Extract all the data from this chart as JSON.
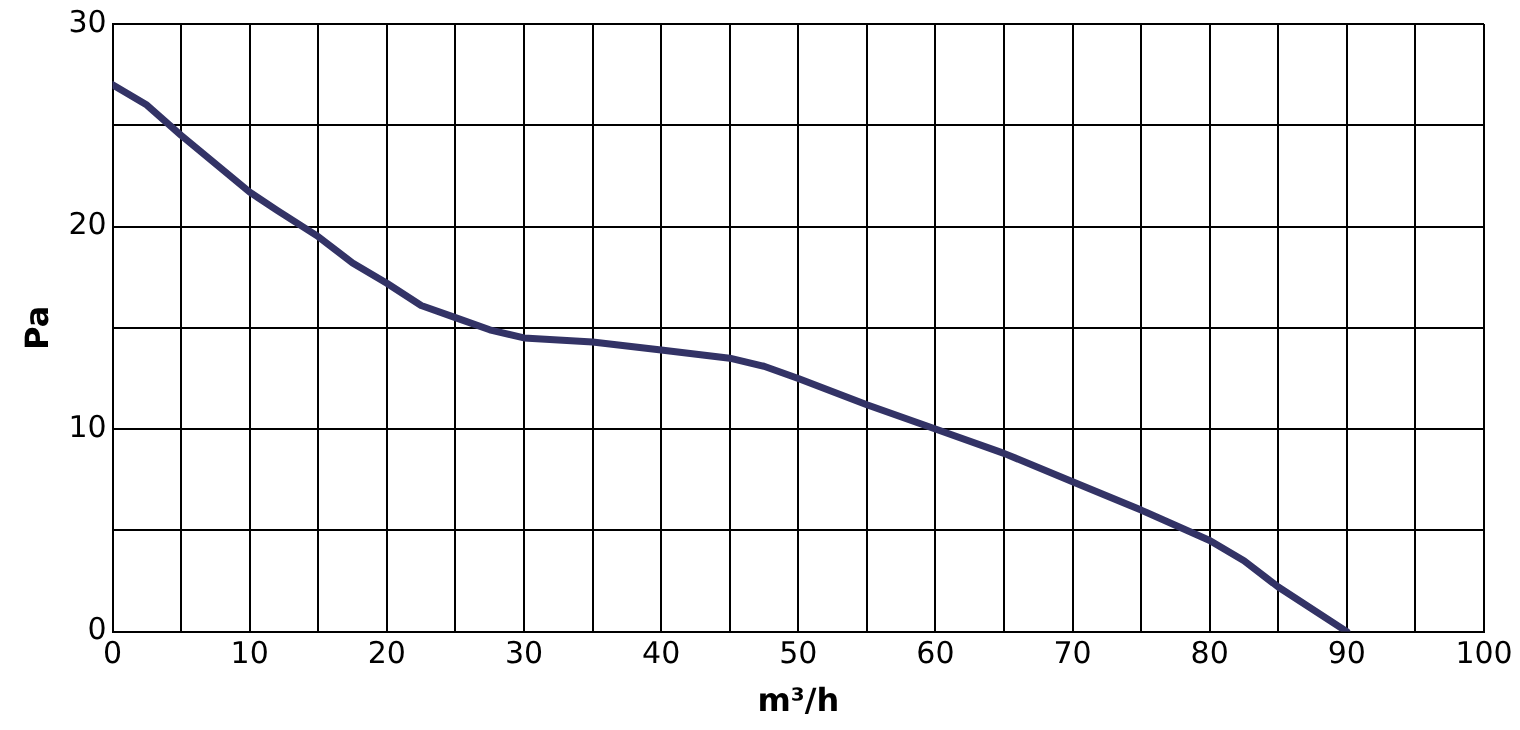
{
  "chart_data": {
    "type": "line",
    "xlabel": "m³/h",
    "ylabel": "Pa",
    "x": [
      0,
      2.5,
      5,
      10,
      12,
      15,
      17.5,
      20,
      22.5,
      25,
      27.5,
      30,
      35,
      40,
      45,
      47.5,
      50,
      55,
      60,
      65,
      70,
      75,
      80,
      82.5,
      85,
      90
    ],
    "series": [
      {
        "color": "#333366",
        "values": [
          27,
          26,
          24.5,
          21.7,
          20.8,
          19.5,
          18.2,
          17.2,
          16.1,
          15.5,
          14.9,
          14.5,
          14.3,
          13.9,
          13.5,
          13.1,
          12.5,
          11.2,
          10,
          8.8,
          7.4,
          6,
          4.5,
          3.5,
          2.2,
          0
        ]
      }
    ],
    "xlim": [
      0,
      100
    ],
    "ylim": [
      0,
      30
    ],
    "xticks": [
      0,
      {
        "value": 5,
        "label": null
      },
      10,
      {
        "value": 15,
        "label": null
      },
      20,
      {
        "value": 25,
        "label": null
      },
      30,
      {
        "value": 35,
        "label": null
      },
      40,
      {
        "value": 45,
        "label": null
      },
      50,
      {
        "value": 55,
        "label": null
      },
      60,
      {
        "value": 65,
        "label": null
      },
      70,
      {
        "value": 75,
        "label": null
      },
      80,
      {
        "value": 85,
        "label": null
      },
      90,
      {
        "value": 95,
        "label": null
      },
      100
    ],
    "yticks": [
      0,
      {
        "value": 5,
        "label": null
      },
      10,
      {
        "value": 15,
        "label": null
      },
      20,
      {
        "value": 25,
        "label": null
      },
      30
    ],
    "grid": true,
    "legend": false,
    "marker": "none",
    "line_style": "solid"
  }
}
